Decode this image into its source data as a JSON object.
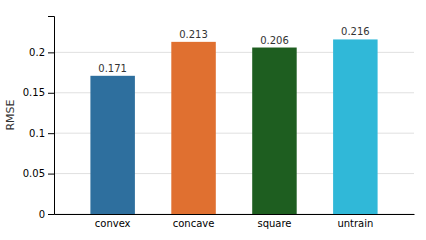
{
  "chart_data": {
    "type": "bar",
    "ylabel": "RMSE",
    "categories": [
      "convex",
      "concave",
      "square",
      "untrain"
    ],
    "values": [
      0.171,
      0.213,
      0.206,
      0.216
    ],
    "colors": [
      "#2e6f9e",
      "#e07030",
      "#1e5e20",
      "#30b8d8"
    ],
    "ylim": [
      0,
      0.245
    ],
    "yticks": [
      0,
      0.05,
      0.1,
      0.15,
      0.2
    ],
    "grid": true,
    "data_labels": true
  }
}
